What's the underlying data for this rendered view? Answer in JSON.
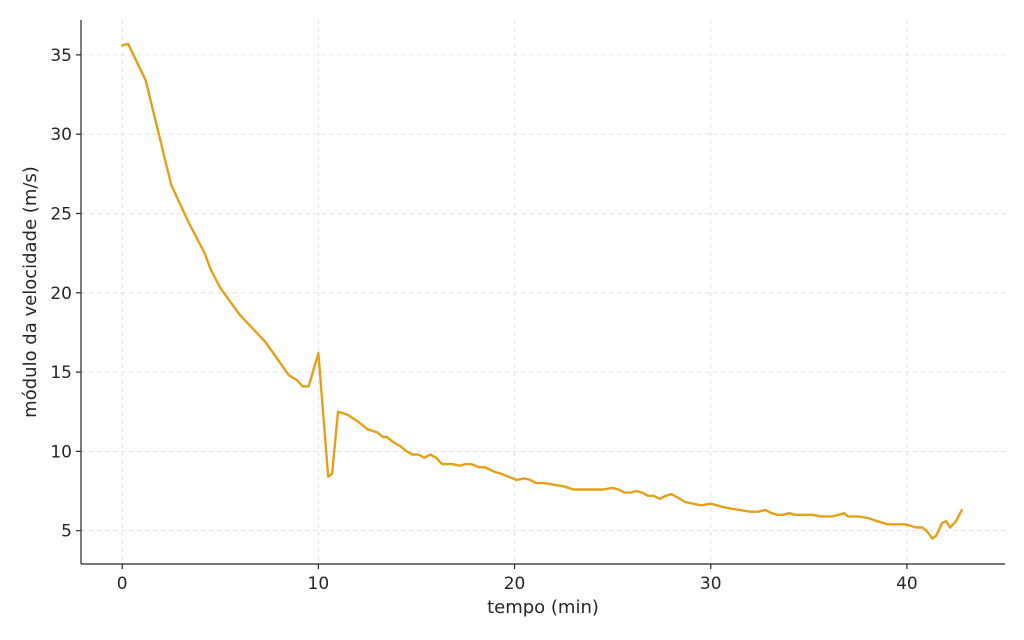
{
  "chart_data": {
    "type": "line",
    "title": "",
    "xlabel": "tempo (min)",
    "ylabel": "módulo da velocidade (m/s)",
    "xlim": [
      -2.1,
      45.0
    ],
    "ylim": [
      2.9,
      37.2
    ],
    "xticks": [
      0,
      10,
      20,
      30,
      40
    ],
    "yticks": [
      5,
      10,
      15,
      20,
      25,
      30,
      35
    ],
    "grid": true,
    "legend": "none",
    "color": "#e5a01a",
    "series": [
      {
        "x": [
          0.0,
          0.3,
          1.2,
          2.5,
          3.4,
          4.2,
          4.5,
          5.0,
          6.0,
          7.3,
          8.5,
          8.9,
          9.2,
          9.5,
          10.0,
          10.5,
          10.7,
          11.0,
          11.5,
          12.0,
          12.5,
          13.0,
          13.3,
          13.5,
          13.8,
          14.2,
          14.5,
          14.8,
          15.1,
          15.4,
          15.7,
          16.0,
          16.3,
          16.5,
          16.8,
          17.2,
          17.5,
          17.8,
          18.2,
          18.5,
          19.0,
          19.3,
          19.7,
          20.1,
          20.5,
          20.8,
          21.1,
          21.5,
          22.0,
          22.5,
          23.0,
          23.5,
          24.0,
          24.5,
          25.0,
          25.3,
          25.6,
          25.9,
          26.2,
          26.5,
          26.8,
          27.1,
          27.4,
          27.7,
          28.0,
          28.3,
          28.7,
          29.1,
          29.5,
          30.0,
          30.3,
          30.6,
          31.0,
          31.5,
          32.0,
          32.4,
          32.8,
          33.1,
          33.4,
          33.7,
          34.0,
          34.3,
          34.7,
          35.2,
          35.6,
          35.9,
          36.2,
          36.5,
          36.8,
          37.0,
          37.5,
          38.0,
          38.5,
          39.0,
          39.5,
          39.9,
          40.2,
          40.5,
          40.8,
          41.0,
          41.3,
          41.5,
          41.8,
          42.0,
          42.2,
          42.5,
          42.8
        ],
        "y": [
          35.6,
          35.7,
          33.4,
          26.8,
          24.4,
          22.5,
          21.5,
          20.3,
          18.6,
          16.9,
          14.8,
          14.5,
          14.1,
          14.1,
          16.2,
          8.4,
          8.6,
          12.5,
          12.3,
          11.9,
          11.4,
          11.2,
          10.9,
          10.9,
          10.6,
          10.3,
          10.0,
          9.8,
          9.8,
          9.6,
          9.8,
          9.6,
          9.2,
          9.2,
          9.2,
          9.1,
          9.2,
          9.2,
          9.0,
          9.0,
          8.7,
          8.6,
          8.4,
          8.2,
          8.3,
          8.2,
          8.0,
          8.0,
          7.9,
          7.8,
          7.6,
          7.6,
          7.6,
          7.6,
          7.7,
          7.6,
          7.4,
          7.4,
          7.5,
          7.4,
          7.2,
          7.2,
          7.0,
          7.2,
          7.3,
          7.1,
          6.8,
          6.7,
          6.6,
          6.7,
          6.6,
          6.5,
          6.4,
          6.3,
          6.2,
          6.2,
          6.3,
          6.1,
          6.0,
          6.0,
          6.1,
          6.0,
          6.0,
          6.0,
          5.9,
          5.9,
          5.9,
          6.0,
          6.1,
          5.9,
          5.9,
          5.8,
          5.6,
          5.4,
          5.4,
          5.4,
          5.3,
          5.2,
          5.2,
          5.0,
          4.5,
          4.7,
          5.5,
          5.6,
          5.2,
          5.6,
          6.3
        ]
      }
    ]
  }
}
